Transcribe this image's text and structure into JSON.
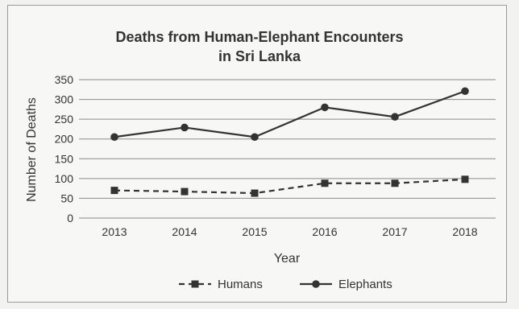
{
  "chart_data": {
    "type": "line",
    "title_line1": "Deaths from Human-Elephant Encounters",
    "title_line2": "in Sri Lanka",
    "xlabel": "Year",
    "ylabel": "Number of Deaths",
    "categories": [
      "2013",
      "2014",
      "2015",
      "2016",
      "2017",
      "2018"
    ],
    "ylim": [
      0,
      350
    ],
    "yticks": [
      "0",
      "50",
      "100",
      "150",
      "200",
      "250",
      "300",
      "350"
    ],
    "grid": true,
    "legend_position": "bottom",
    "series": [
      {
        "name": "Humans",
        "values": [
          70,
          67,
          63,
          88,
          88,
          98
        ],
        "style": "dashed",
        "marker": "square",
        "color": "#333333"
      },
      {
        "name": "Elephants",
        "values": [
          205,
          229,
          205,
          280,
          256,
          321
        ],
        "style": "solid",
        "marker": "circle",
        "color": "#333333"
      }
    ]
  }
}
